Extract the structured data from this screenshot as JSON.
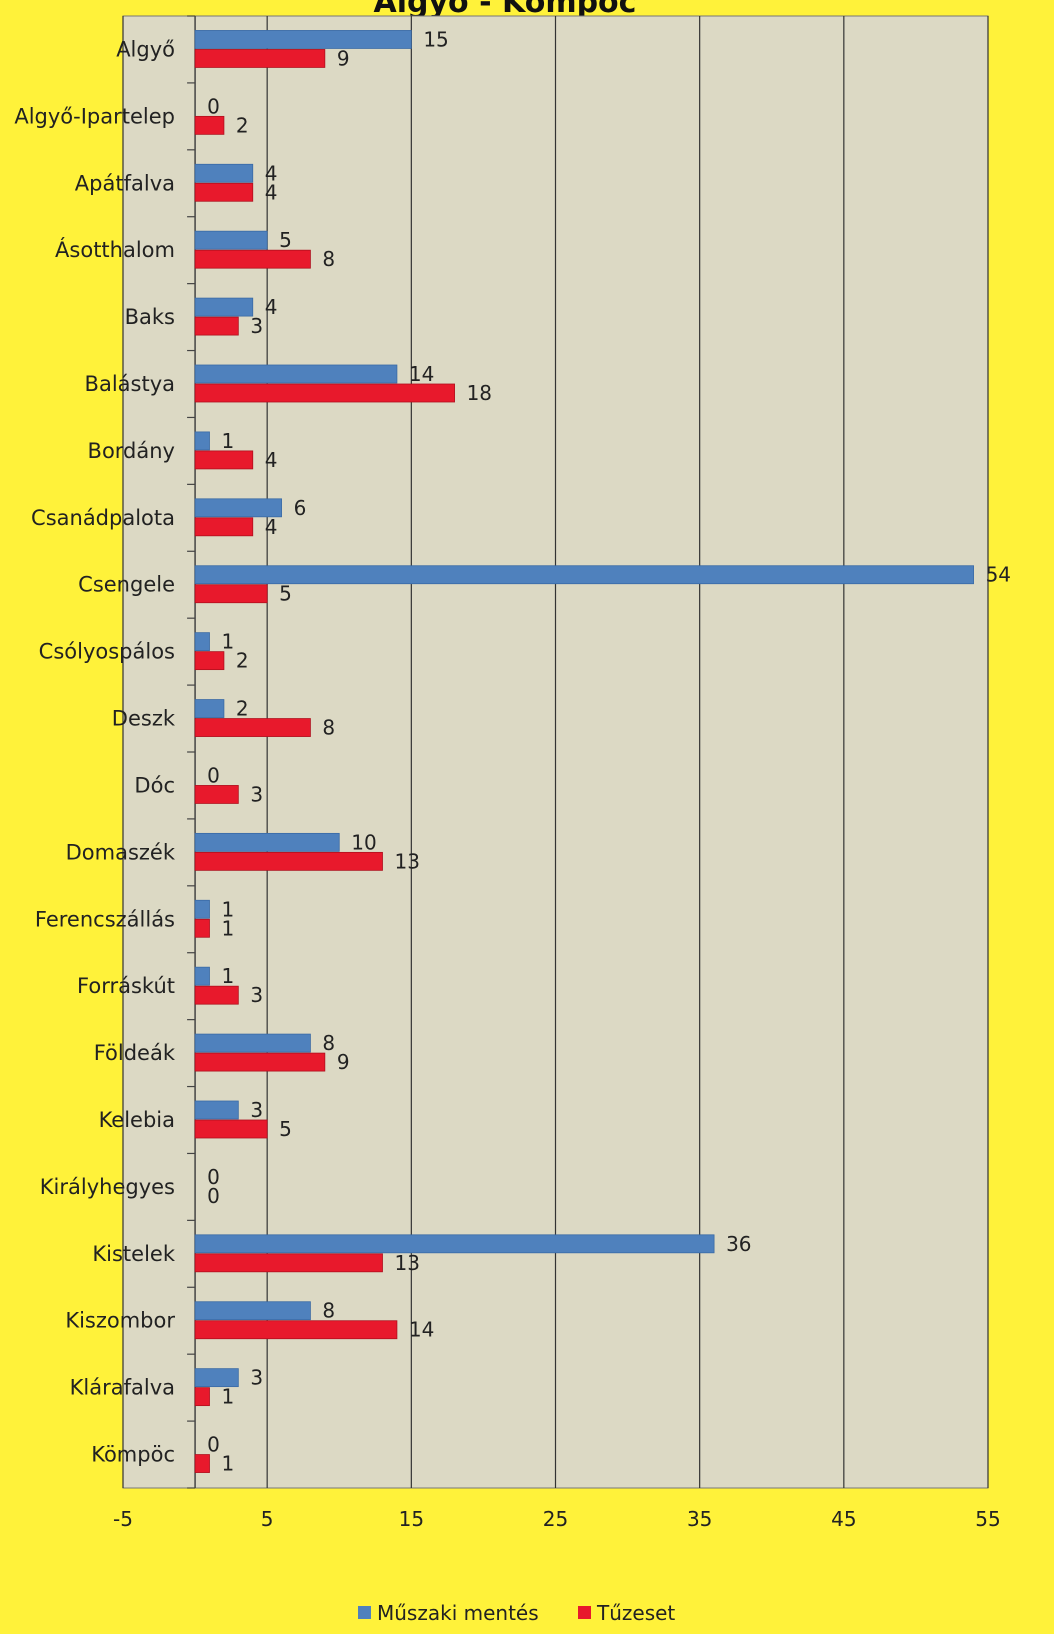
{
  "chart_data": {
    "type": "bar",
    "orientation": "horizontal",
    "title": "Algyő - Kömpöc",
    "categories": [
      "Algyő",
      "Algyő-Ipartelep",
      "Apátfalva",
      "Ásotthalom",
      "Baks",
      "Balástya",
      "Bordány",
      "Csanádpalota",
      "Csengele",
      "Csólyospálos",
      "Deszk",
      "Dóc",
      "Domaszék",
      "Ferencszállás",
      "Forráskút",
      "Földeák",
      "Kelebia",
      "Királyhegyes",
      "Kistelek",
      "Kiszombor",
      "Klárafalva",
      "Kömpöc"
    ],
    "series": [
      {
        "name": "Műszaki mentés",
        "color": "#4f81bd",
        "values": [
          15,
          0,
          4,
          5,
          4,
          14,
          1,
          6,
          54,
          1,
          2,
          0,
          10,
          1,
          1,
          8,
          3,
          0,
          36,
          8,
          3,
          0
        ]
      },
      {
        "name": "Tűzeset",
        "color": "#e8192c",
        "values": [
          9,
          2,
          4,
          8,
          3,
          18,
          4,
          4,
          5,
          2,
          8,
          3,
          13,
          1,
          3,
          9,
          5,
          0,
          13,
          14,
          1,
          1
        ]
      }
    ],
    "xlim": [
      -5,
      55
    ],
    "xticks": [
      "-5",
      "5",
      "15",
      "25",
      "35",
      "45",
      "55"
    ],
    "grid": true,
    "legend_position": "bottom"
  }
}
